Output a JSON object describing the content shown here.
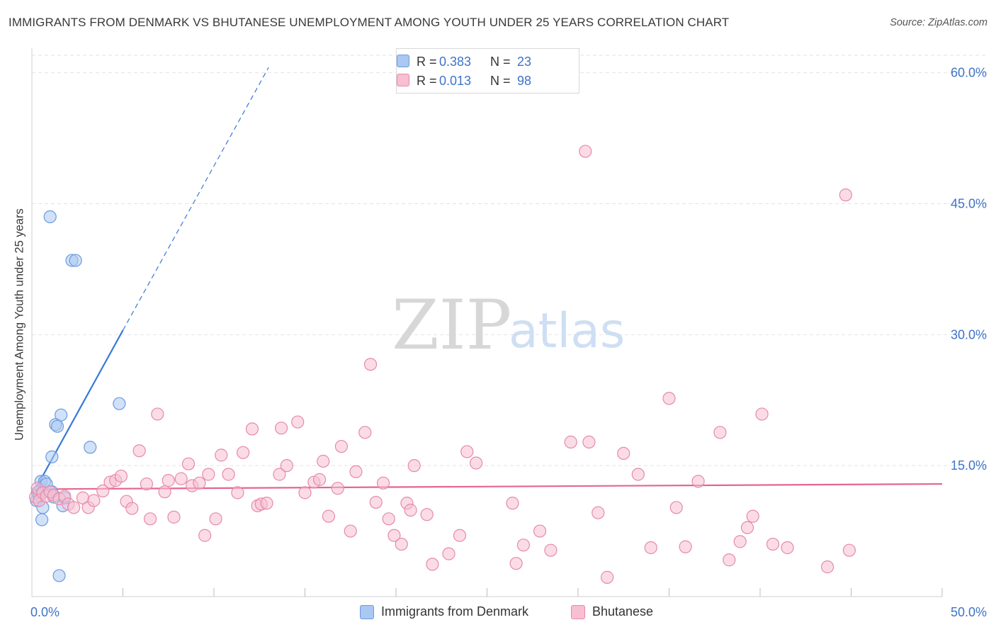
{
  "header": {
    "title": "IMMIGRANTS FROM DENMARK VS BHUTANESE UNEMPLOYMENT AMONG YOUTH UNDER 25 YEARS CORRELATION CHART",
    "source": "Source: ZipAtlas.com"
  },
  "watermark": {
    "zip": "ZIP",
    "atlas": "atlas"
  },
  "legend": {
    "rows": [
      {
        "r_label": "R =",
        "r_value": "0.383",
        "n_label": "N =",
        "n_value": "23",
        "color": "#a9c8f2",
        "border": "#6b9bdd"
      },
      {
        "r_label": "R =",
        "r_value": "0.013",
        "n_label": "N =",
        "n_value": "98",
        "color": "#f7bfd1",
        "border": "#e58aa8"
      }
    ]
  },
  "bottom_legend": {
    "series1": "Immigrants from Denmark",
    "series2": "Bhutanese"
  },
  "chart_data": {
    "type": "scatter",
    "title": "IMMIGRANTS FROM DENMARK VS BHUTANESE UNEMPLOYMENT AMONG YOUTH UNDER 25 YEARS CORRELATION CHART",
    "xlabel": "",
    "ylabel": "Unemployment Among Youth under 25 years",
    "xlim": [
      0,
      50
    ],
    "ylim": [
      0,
      62
    ],
    "x_tick_labels": [
      "0.0%",
      "50.0%"
    ],
    "y_ticks": [
      15,
      30,
      45,
      60
    ],
    "y_tick_labels": [
      "15.0%",
      "30.0%",
      "45.0%",
      "60.0%"
    ],
    "grid": true,
    "series": [
      {
        "name": "Immigrants from Denmark",
        "color": "#a9c8f2",
        "edge": "#6b9bdd",
        "line_color": "#3a78d4",
        "trend": {
          "x0": 0.3,
          "y0": 12.7,
          "x1": 5.0,
          "y1": 30.5,
          "x_dash_end": 13.0,
          "y_dash_end": 60.6
        },
        "points": [
          [
            0.25,
            11.0
          ],
          [
            0.3,
            11.9
          ],
          [
            0.35,
            12.0
          ],
          [
            0.4,
            11.6
          ],
          [
            0.5,
            13.2
          ],
          [
            0.55,
            8.8
          ],
          [
            0.6,
            10.2
          ],
          [
            0.7,
            13.2
          ],
          [
            0.8,
            12.9
          ],
          [
            1.0,
            43.5
          ],
          [
            1.1,
            16.0
          ],
          [
            1.2,
            11.4
          ],
          [
            1.3,
            19.7
          ],
          [
            1.4,
            19.5
          ],
          [
            1.5,
            2.4
          ],
          [
            1.6,
            20.8
          ],
          [
            1.7,
            10.4
          ],
          [
            1.8,
            11.3
          ],
          [
            2.2,
            38.5
          ],
          [
            2.4,
            38.5
          ],
          [
            3.2,
            17.1
          ],
          [
            4.8,
            22.1
          ],
          [
            1.1,
            12.0
          ]
        ]
      },
      {
        "name": "Bhutanese",
        "color": "#f7bfd1",
        "edge": "#e58aa8",
        "line_color": "#e4668f",
        "trend": {
          "x0": 0.0,
          "y0": 12.3,
          "x1": 50.0,
          "y1": 12.9
        },
        "points": [
          [
            0.2,
            11.4
          ],
          [
            0.3,
            12.4
          ],
          [
            0.4,
            11.0
          ],
          [
            0.6,
            11.9
          ],
          [
            0.8,
            11.5
          ],
          [
            1.0,
            12.0
          ],
          [
            1.2,
            11.6
          ],
          [
            1.5,
            11.2
          ],
          [
            1.8,
            11.5
          ],
          [
            2.0,
            10.6
          ],
          [
            2.3,
            10.2
          ],
          [
            2.8,
            11.3
          ],
          [
            3.1,
            10.2
          ],
          [
            3.4,
            11.0
          ],
          [
            3.9,
            12.1
          ],
          [
            4.3,
            13.1
          ],
          [
            4.6,
            13.3
          ],
          [
            4.9,
            13.8
          ],
          [
            5.2,
            10.9
          ],
          [
            5.5,
            10.1
          ],
          [
            5.9,
            16.7
          ],
          [
            6.3,
            12.9
          ],
          [
            6.5,
            8.9
          ],
          [
            6.9,
            20.9
          ],
          [
            7.3,
            12.0
          ],
          [
            7.5,
            13.3
          ],
          [
            7.8,
            9.1
          ],
          [
            8.2,
            13.5
          ],
          [
            8.6,
            15.2
          ],
          [
            8.8,
            12.7
          ],
          [
            9.2,
            13.0
          ],
          [
            9.5,
            7.0
          ],
          [
            9.7,
            14.0
          ],
          [
            10.1,
            8.9
          ],
          [
            10.4,
            16.2
          ],
          [
            10.8,
            14.0
          ],
          [
            11.3,
            11.9
          ],
          [
            11.6,
            16.5
          ],
          [
            12.1,
            19.2
          ],
          [
            12.4,
            10.4
          ],
          [
            12.6,
            10.6
          ],
          [
            12.9,
            10.7
          ],
          [
            13.6,
            14.0
          ],
          [
            13.7,
            19.3
          ],
          [
            14.0,
            15.0
          ],
          [
            14.6,
            20.0
          ],
          [
            15.0,
            11.9
          ],
          [
            15.5,
            13.1
          ],
          [
            15.8,
            13.4
          ],
          [
            16.0,
            15.5
          ],
          [
            16.3,
            9.2
          ],
          [
            16.8,
            12.4
          ],
          [
            17.0,
            17.2
          ],
          [
            17.5,
            7.5
          ],
          [
            17.8,
            14.3
          ],
          [
            18.3,
            18.8
          ],
          [
            18.6,
            26.6
          ],
          [
            18.9,
            10.8
          ],
          [
            19.3,
            13.0
          ],
          [
            19.6,
            8.9
          ],
          [
            19.9,
            7.0
          ],
          [
            20.3,
            6.0
          ],
          [
            20.6,
            10.7
          ],
          [
            20.8,
            9.9
          ],
          [
            21.0,
            15.0
          ],
          [
            21.7,
            9.4
          ],
          [
            22.0,
            3.7
          ],
          [
            22.9,
            4.9
          ],
          [
            23.5,
            7.0
          ],
          [
            23.9,
            16.6
          ],
          [
            24.4,
            15.3
          ],
          [
            26.4,
            10.7
          ],
          [
            26.6,
            3.8
          ],
          [
            27.0,
            5.9
          ],
          [
            27.9,
            7.5
          ],
          [
            28.5,
            5.3
          ],
          [
            29.6,
            17.7
          ],
          [
            30.4,
            51.0
          ],
          [
            30.6,
            17.7
          ],
          [
            31.1,
            9.6
          ],
          [
            31.6,
            2.2
          ],
          [
            32.5,
            16.4
          ],
          [
            33.3,
            14.0
          ],
          [
            34.0,
            5.6
          ],
          [
            35.0,
            22.7
          ],
          [
            35.4,
            10.2
          ],
          [
            35.9,
            5.7
          ],
          [
            36.6,
            13.2
          ],
          [
            37.8,
            18.8
          ],
          [
            38.3,
            4.2
          ],
          [
            38.9,
            6.3
          ],
          [
            39.3,
            7.9
          ],
          [
            39.6,
            9.2
          ],
          [
            40.1,
            20.9
          ],
          [
            40.7,
            6.0
          ],
          [
            41.5,
            5.6
          ],
          [
            43.7,
            3.4
          ],
          [
            44.7,
            46.0
          ],
          [
            44.9,
            5.3
          ]
        ]
      }
    ]
  }
}
